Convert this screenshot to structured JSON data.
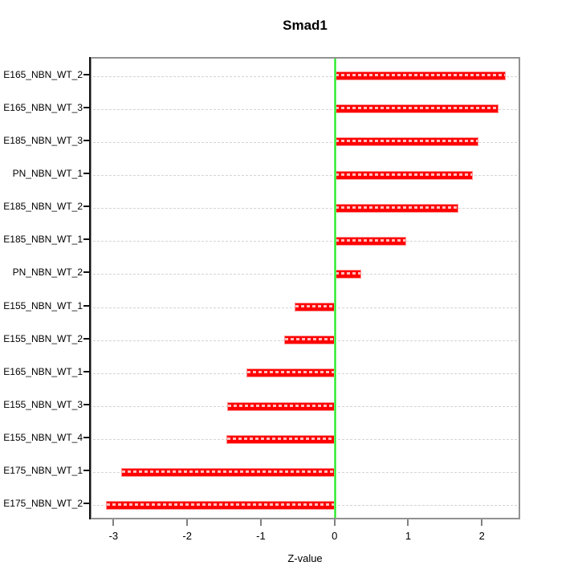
{
  "chart_data": {
    "type": "bar",
    "orientation": "horizontal",
    "title": "Smad1",
    "xlabel": "Z-value",
    "ylabel": "",
    "categories": [
      "E165_NBN_WT_2",
      "E165_NBN_WT_3",
      "E185_NBN_WT_3",
      "PN_NBN_WT_1",
      "E185_NBN_WT_2",
      "E185_NBN_WT_1",
      "PN_NBN_WT_2",
      "E155_NBN_WT_1",
      "E155_NBN_WT_2",
      "E165_NBN_WT_1",
      "E155_NBN_WT_3",
      "E155_NBN_WT_4",
      "E175_NBN_WT_1",
      "E175_NBN_WT_2"
    ],
    "values": [
      2.3,
      2.2,
      1.93,
      1.86,
      1.66,
      0.95,
      0.34,
      -0.54,
      -0.68,
      -1.2,
      -1.46,
      -1.47,
      -2.9,
      -3.1
    ],
    "xlim": [
      -3.32,
      2.52
    ],
    "xticks": [
      -3,
      -2,
      -1,
      0,
      1,
      2
    ],
    "zero_line_x": 0,
    "grid": "horizontal-dashed-per-category",
    "legend": "none",
    "colors": {
      "bar": "#ff0000",
      "bar_edge": "#ff9090",
      "bar_dash_overlay": "#ffffff",
      "zero_line": "#06e006",
      "gridline": "#d4d4d4",
      "box_border": "#919191",
      "left_axis": "#111111",
      "text": "#000000"
    }
  }
}
